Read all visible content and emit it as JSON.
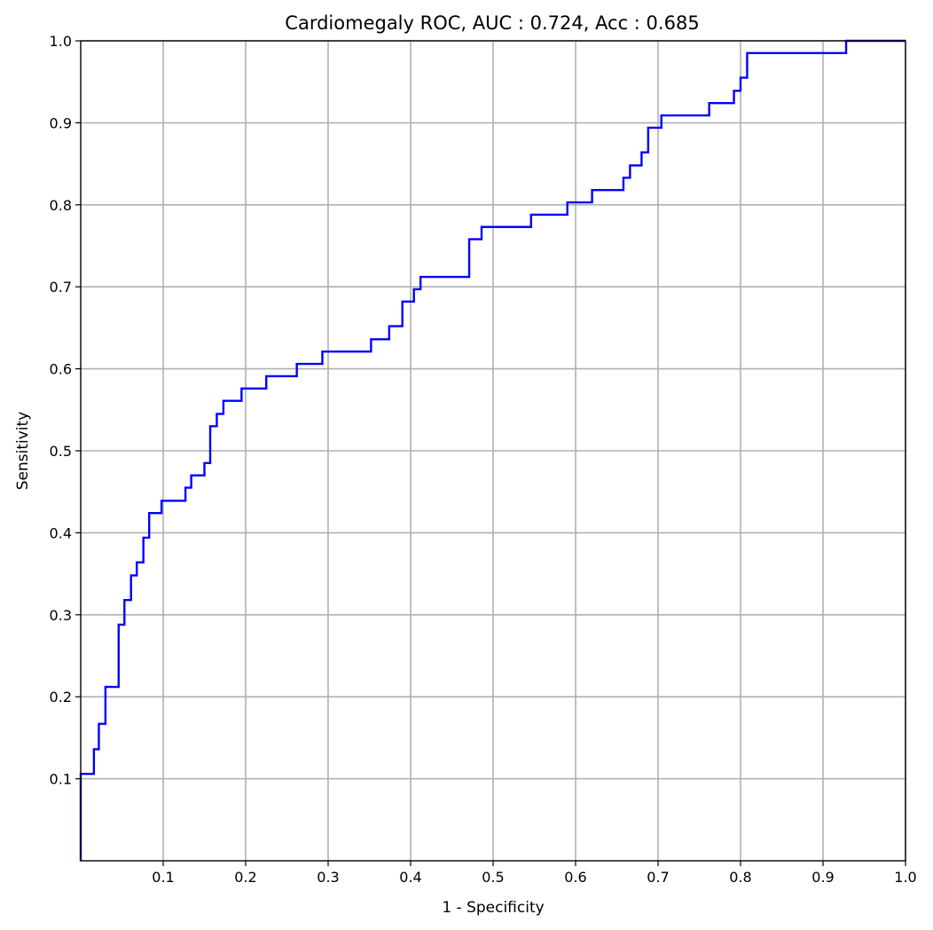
{
  "chart_data": {
    "type": "line",
    "title": "Cardiomegaly ROC, AUC : 0.724, Acc : 0.685",
    "xlabel": "1 - Specificity",
    "ylabel": "Sensitivity",
    "xlim": [
      0,
      1
    ],
    "ylim": [
      0,
      1
    ],
    "grid": true,
    "step": "post",
    "xticks": [
      0.1,
      0.2,
      0.3,
      0.4,
      0.5,
      0.6,
      0.7,
      0.8,
      0.9,
      1.0
    ],
    "xtick_labels": [
      "0.1",
      "0.2",
      "0.3",
      "0.4",
      "0.5",
      "0.6",
      "0.7",
      "0.8",
      "0.9",
      "1.0"
    ],
    "yticks": [
      0.1,
      0.2,
      0.3,
      0.4,
      0.5,
      0.6,
      0.7,
      0.8,
      0.9,
      1.0
    ],
    "ytick_labels": [
      "0.1",
      "0.2",
      "0.3",
      "0.4",
      "0.5",
      "0.6",
      "0.7",
      "0.8",
      "0.9",
      "1.0"
    ],
    "series": [
      {
        "color": "#0000ff",
        "points": [
          [
            0.0,
            0.0
          ],
          [
            0.0,
            0.106
          ],
          [
            0.016,
            0.106
          ],
          [
            0.016,
            0.136
          ],
          [
            0.022,
            0.136
          ],
          [
            0.022,
            0.167
          ],
          [
            0.03,
            0.167
          ],
          [
            0.03,
            0.212
          ],
          [
            0.046,
            0.212
          ],
          [
            0.046,
            0.288
          ],
          [
            0.053,
            0.288
          ],
          [
            0.053,
            0.318
          ],
          [
            0.061,
            0.318
          ],
          [
            0.061,
            0.348
          ],
          [
            0.068,
            0.348
          ],
          [
            0.068,
            0.364
          ],
          [
            0.076,
            0.364
          ],
          [
            0.076,
            0.394
          ],
          [
            0.083,
            0.394
          ],
          [
            0.083,
            0.424
          ],
          [
            0.098,
            0.424
          ],
          [
            0.098,
            0.439
          ],
          [
            0.127,
            0.439
          ],
          [
            0.127,
            0.455
          ],
          [
            0.134,
            0.455
          ],
          [
            0.134,
            0.47
          ],
          [
            0.15,
            0.47
          ],
          [
            0.15,
            0.485
          ],
          [
            0.157,
            0.485
          ],
          [
            0.157,
            0.53
          ],
          [
            0.165,
            0.53
          ],
          [
            0.165,
            0.545
          ],
          [
            0.173,
            0.545
          ],
          [
            0.173,
            0.561
          ],
          [
            0.195,
            0.561
          ],
          [
            0.195,
            0.576
          ],
          [
            0.225,
            0.576
          ],
          [
            0.225,
            0.591
          ],
          [
            0.262,
            0.591
          ],
          [
            0.262,
            0.606
          ],
          [
            0.293,
            0.606
          ],
          [
            0.293,
            0.621
          ],
          [
            0.352,
            0.621
          ],
          [
            0.352,
            0.636
          ],
          [
            0.374,
            0.636
          ],
          [
            0.374,
            0.652
          ],
          [
            0.39,
            0.652
          ],
          [
            0.39,
            0.682
          ],
          [
            0.404,
            0.682
          ],
          [
            0.404,
            0.697
          ],
          [
            0.412,
            0.697
          ],
          [
            0.412,
            0.712
          ],
          [
            0.471,
            0.712
          ],
          [
            0.471,
            0.758
          ],
          [
            0.486,
            0.758
          ],
          [
            0.486,
            0.773
          ],
          [
            0.546,
            0.773
          ],
          [
            0.546,
            0.788
          ],
          [
            0.59,
            0.788
          ],
          [
            0.59,
            0.803
          ],
          [
            0.62,
            0.803
          ],
          [
            0.62,
            0.818
          ],
          [
            0.658,
            0.818
          ],
          [
            0.658,
            0.833
          ],
          [
            0.666,
            0.833
          ],
          [
            0.666,
            0.848
          ],
          [
            0.68,
            0.848
          ],
          [
            0.68,
            0.864
          ],
          [
            0.688,
            0.864
          ],
          [
            0.688,
            0.894
          ],
          [
            0.704,
            0.894
          ],
          [
            0.704,
            0.909
          ],
          [
            0.762,
            0.909
          ],
          [
            0.762,
            0.924
          ],
          [
            0.792,
            0.924
          ],
          [
            0.792,
            0.939
          ],
          [
            0.8,
            0.939
          ],
          [
            0.8,
            0.955
          ],
          [
            0.808,
            0.955
          ],
          [
            0.808,
            0.985
          ],
          [
            0.928,
            0.985
          ],
          [
            0.928,
            1.0
          ],
          [
            1.0,
            1.0
          ]
        ]
      }
    ]
  }
}
